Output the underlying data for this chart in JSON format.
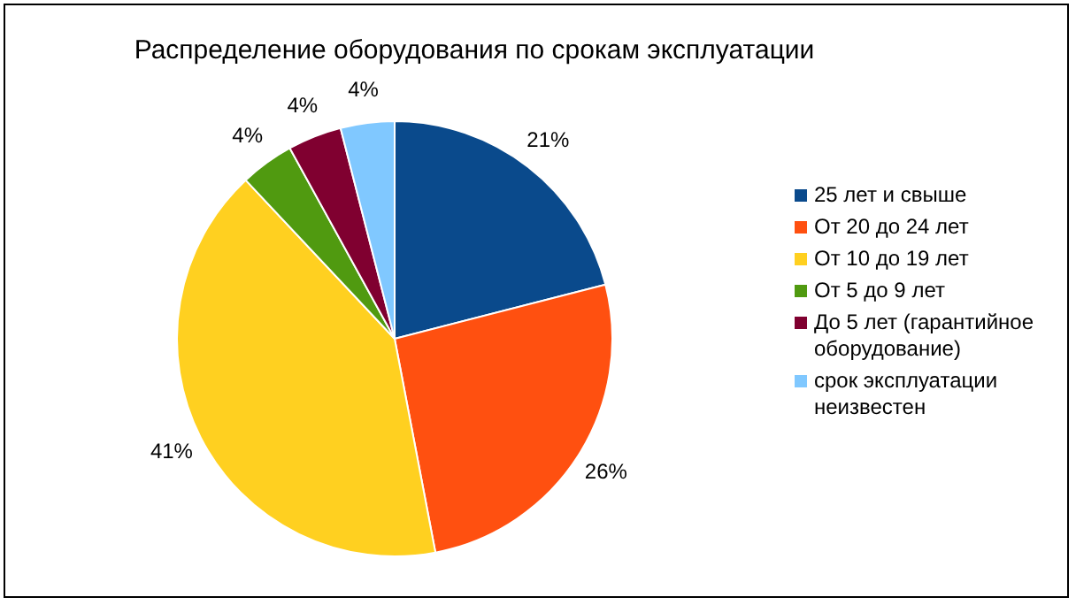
{
  "chart_data": {
    "type": "pie",
    "title": "Распределение оборудования по срокам эксплуатации",
    "categories": [
      "25 лет и свыше",
      "От 20 до 24 лет",
      "От 10 до 19 лет",
      "От 5 до 9 лет",
      "До 5 лет (гарантийное оборудование)",
      "срок эксплуатации неизвестен"
    ],
    "values": [
      21,
      26,
      41,
      4,
      4,
      4
    ],
    "value_labels": [
      "21%",
      "26%",
      "41%",
      "4%",
      "4%",
      "4%"
    ],
    "colors": [
      "#0a4a8c",
      "#ff5010",
      "#ffd020",
      "#509a10",
      "#800030",
      "#80c8ff"
    ],
    "legend": "right"
  }
}
